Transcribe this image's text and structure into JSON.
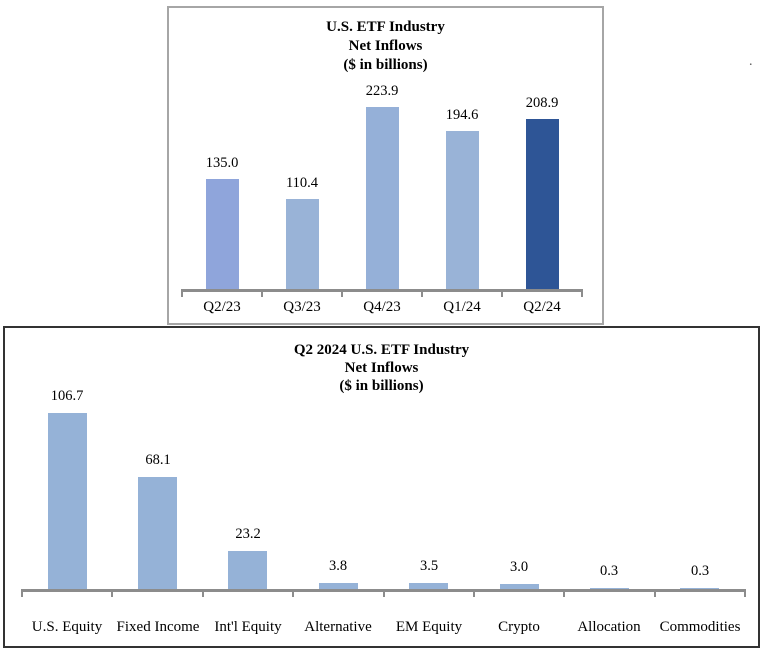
{
  "page": {
    "stray_mark": "."
  },
  "chart_data": [
    {
      "type": "bar",
      "title": "U.S. ETF Industry Net Inflows ($ in billions)",
      "title_lines": [
        "U.S. ETF Industry",
        "Net Inflows",
        "($ in billions)"
      ],
      "categories": [
        "Q2/23",
        "Q3/23",
        "Q4/23",
        "Q1/24",
        "Q2/24"
      ],
      "values": [
        135.0,
        110.4,
        223.9,
        194.6,
        208.9
      ],
      "value_labels": [
        "135.0",
        "110.4",
        "223.9",
        "194.6",
        "208.9"
      ],
      "bar_colors": [
        "#8fa5db",
        "#99b3d7",
        "#95b0d8",
        "#99b3d7",
        "#2e5596"
      ],
      "axis_color": "#8c8c8c",
      "border_color": "#a6a6a6",
      "xlabel": "",
      "ylabel": "",
      "ylim": [
        0,
        240
      ],
      "grid": false,
      "legend": false,
      "y_axis_visible": false,
      "data_labels": "above bars"
    },
    {
      "type": "bar",
      "title": "Q2 2024 U.S. ETF Industry Net Inflows ($ in billions)",
      "title_lines": [
        "Q2 2024 U.S. ETF Industry",
        "Net Inflows",
        "($ in billions)"
      ],
      "categories": [
        "U.S. Equity",
        "Fixed Income",
        "Int'l Equity",
        "Alternative",
        "EM Equity",
        "Crypto",
        "Allocation",
        "Commodities"
      ],
      "values": [
        106.7,
        68.1,
        23.2,
        3.8,
        3.5,
        3.0,
        0.3,
        0.3
      ],
      "value_labels": [
        "106.7",
        "68.1",
        "23.2",
        "3.8",
        "3.5",
        "3.0",
        "0.3",
        "0.3"
      ],
      "bar_colors": [
        "#95b2d7",
        "#95b2d7",
        "#95b2d7",
        "#95b2d7",
        "#95b2d7",
        "#95b2d7",
        "#95b2d7",
        "#95b2d7"
      ],
      "axis_color": "#8c8c8c",
      "border_color": "#333333",
      "xlabel": "",
      "ylabel": "",
      "ylim": [
        0,
        120
      ],
      "grid": false,
      "legend": false,
      "y_axis_visible": false,
      "data_labels": "above bars"
    }
  ]
}
